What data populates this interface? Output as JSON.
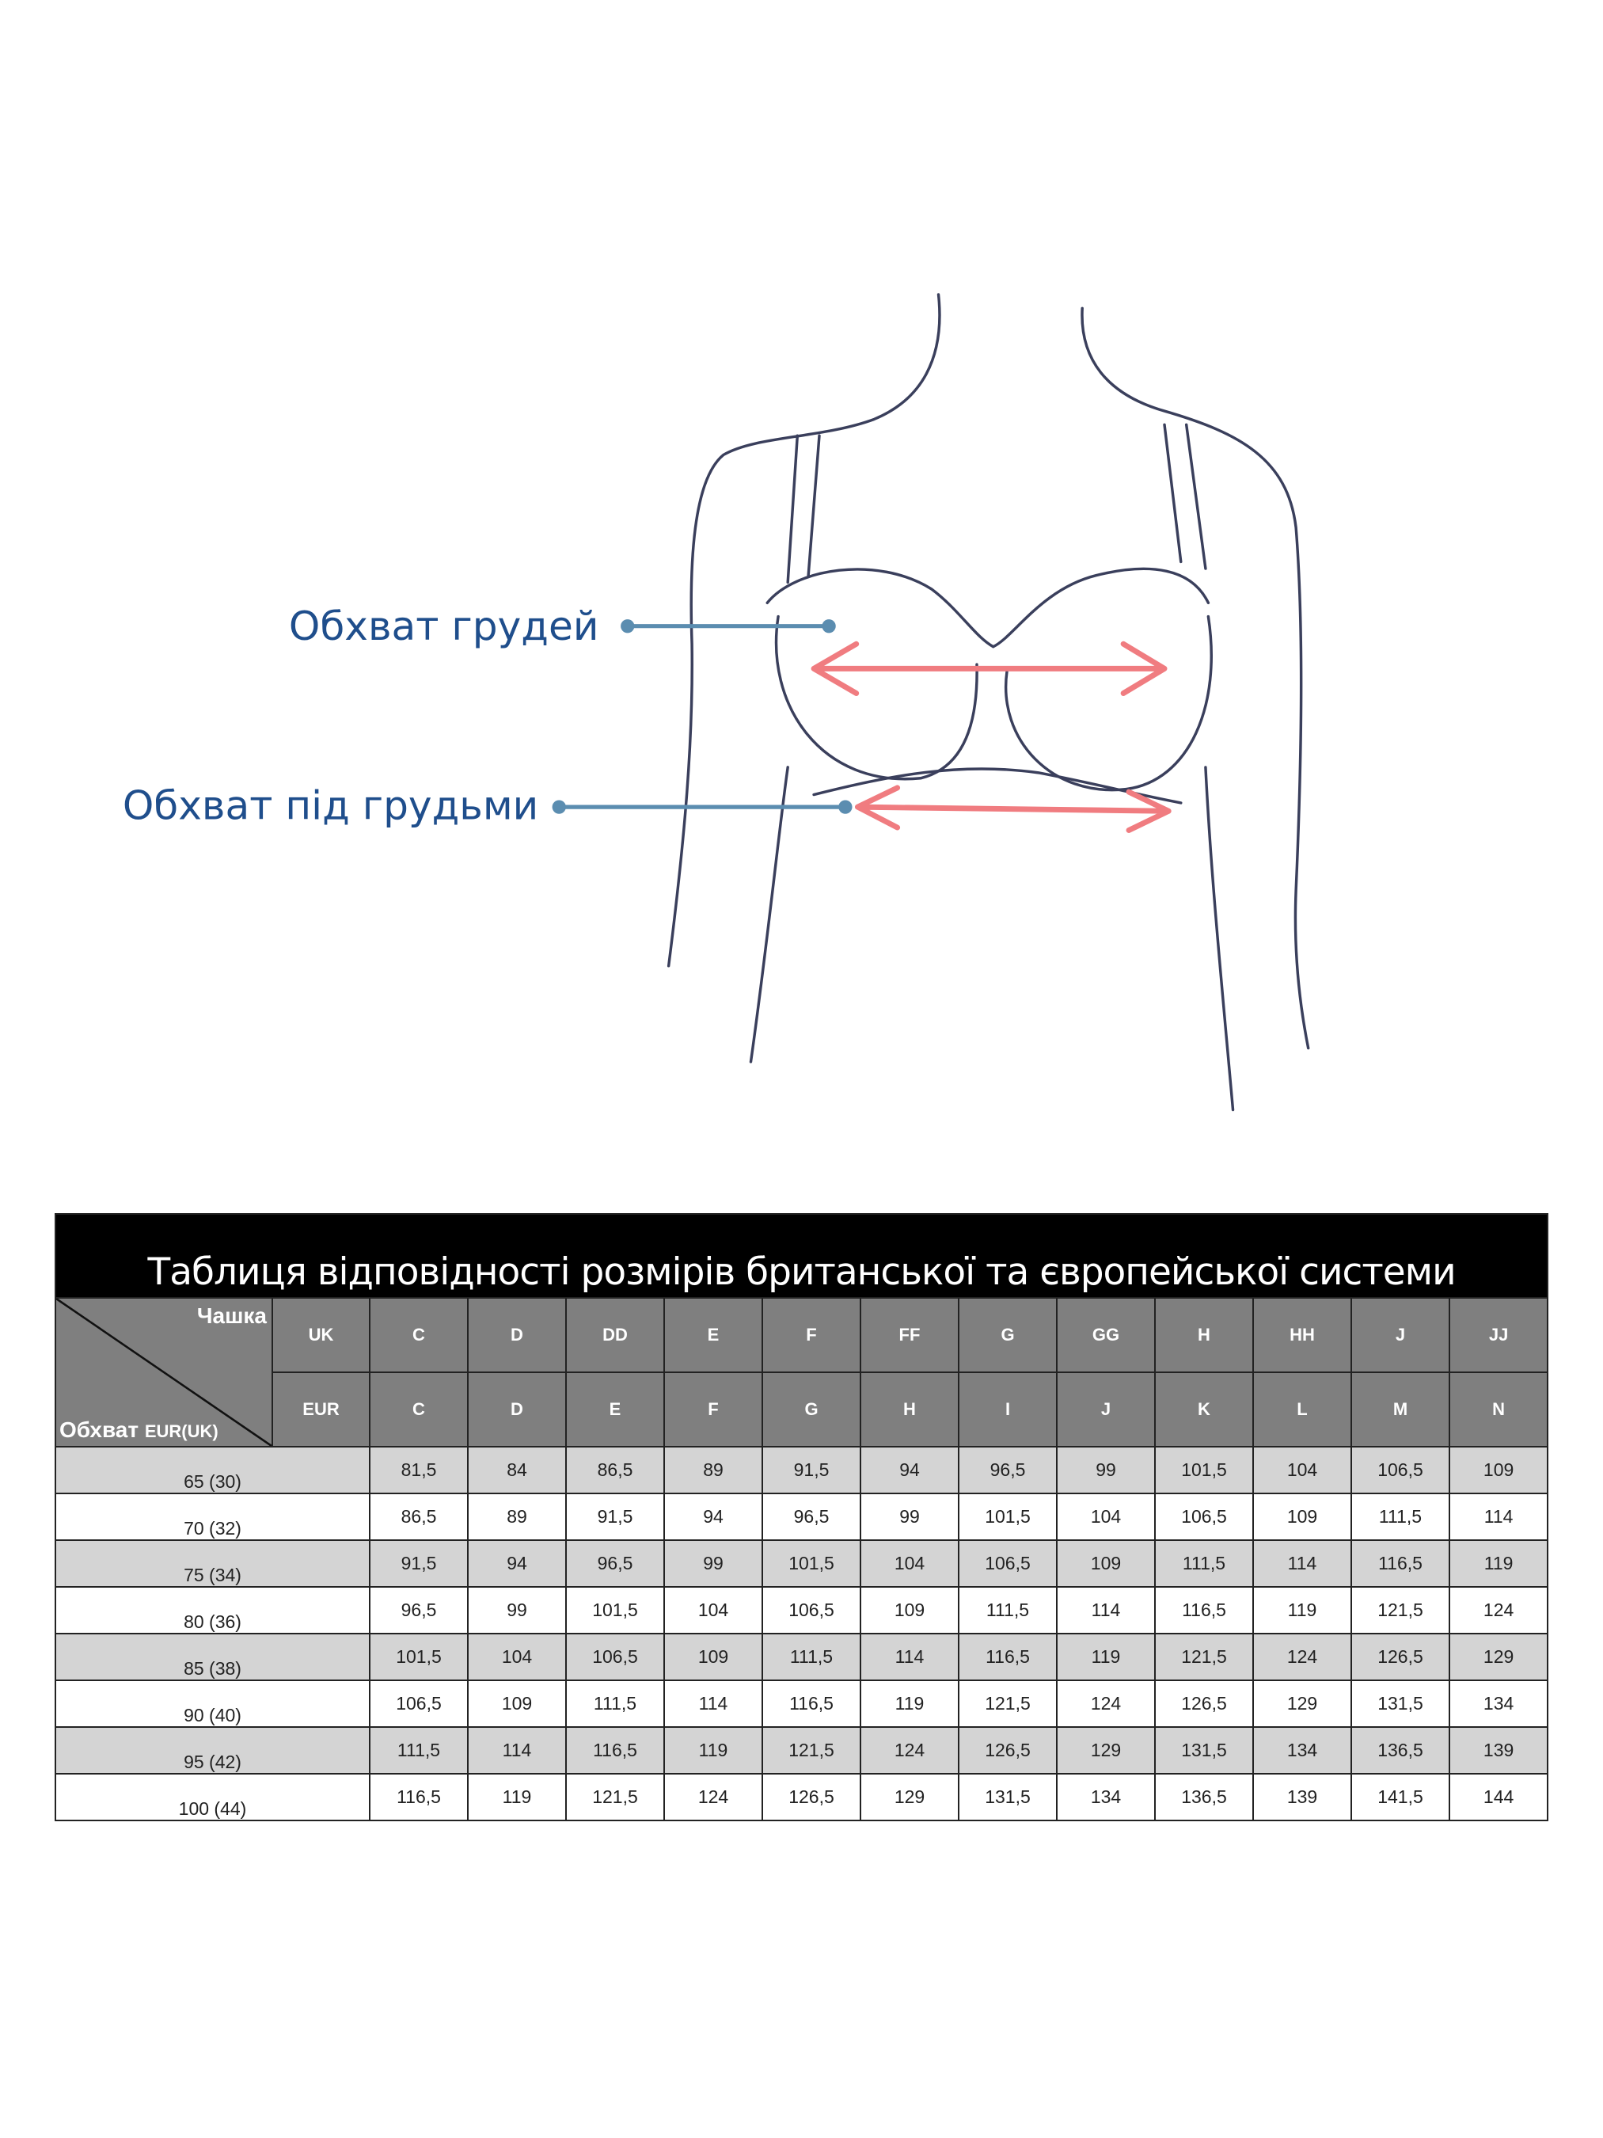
{
  "labels": {
    "bust": "Обхват грудей",
    "underbust": "Обхват під грудьми"
  },
  "colors": {
    "label_text": "#1f4e8c",
    "pointer_line": "#5b8db0",
    "measure_arrow": "#f07c80",
    "header_bg": "#7f7f7f",
    "title_bg": "#000000",
    "row_shade": "#d4d4d4"
  },
  "table": {
    "title": "Таблиця відповідності розмірів британської та європейської системи",
    "corner_cup": "Чашка",
    "corner_band": "Обхват",
    "corner_band_suffix": "EUR(UK)",
    "uk_label": "UK",
    "eur_label": "EUR",
    "uk_cups": [
      "C",
      "D",
      "DD",
      "E",
      "F",
      "FF",
      "G",
      "GG",
      "H",
      "HH",
      "J",
      "JJ"
    ],
    "eur_cups": [
      "C",
      "D",
      "E",
      "F",
      "G",
      "H",
      "I",
      "J",
      "K",
      "L",
      "M",
      "N"
    ],
    "rows": [
      {
        "band": "65 (30)",
        "values": [
          "81,5",
          "84",
          "86,5",
          "89",
          "91,5",
          "94",
          "96,5",
          "99",
          "101,5",
          "104",
          "106,5",
          "109"
        ]
      },
      {
        "band": "70 (32)",
        "values": [
          "86,5",
          "89",
          "91,5",
          "94",
          "96,5",
          "99",
          "101,5",
          "104",
          "106,5",
          "109",
          "111,5",
          "114"
        ]
      },
      {
        "band": "75 (34)",
        "values": [
          "91,5",
          "94",
          "96,5",
          "99",
          "101,5",
          "104",
          "106,5",
          "109",
          "111,5",
          "114",
          "116,5",
          "119"
        ]
      },
      {
        "band": "80 (36)",
        "values": [
          "96,5",
          "99",
          "101,5",
          "104",
          "106,5",
          "109",
          "111,5",
          "114",
          "116,5",
          "119",
          "121,5",
          "124"
        ]
      },
      {
        "band": "85 (38)",
        "values": [
          "101,5",
          "104",
          "106,5",
          "109",
          "111,5",
          "114",
          "116,5",
          "119",
          "121,5",
          "124",
          "126,5",
          "129"
        ]
      },
      {
        "band": "90 (40)",
        "values": [
          "106,5",
          "109",
          "111,5",
          "114",
          "116,5",
          "119",
          "121,5",
          "124",
          "126,5",
          "129",
          "131,5",
          "134"
        ]
      },
      {
        "band": "95 (42)",
        "values": [
          "111,5",
          "114",
          "116,5",
          "119",
          "121,5",
          "124",
          "126,5",
          "129",
          "131,5",
          "134",
          "136,5",
          "139"
        ]
      },
      {
        "band": "100 (44)",
        "values": [
          "116,5",
          "119",
          "121,5",
          "124",
          "126,5",
          "129",
          "131,5",
          "134",
          "136,5",
          "139",
          "141,5",
          "144"
        ]
      }
    ]
  }
}
